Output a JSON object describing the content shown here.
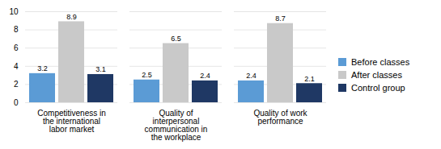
{
  "chart_data": {
    "type": "bar",
    "categories": [
      "Competitiveness in\nthe international\nlabor market",
      "Quality of\ninterpersonal\ncommunication in\nthe workplace",
      "Quality of work\nperformance"
    ],
    "series": [
      {
        "name": "Before classes",
        "color": "#5b9bd5",
        "values": [
          3.2,
          2.5,
          2.4
        ]
      },
      {
        "name": "After classes",
        "color": "#c9c9c9",
        "values": [
          8.9,
          6.5,
          8.7
        ]
      },
      {
        "name": "Control group",
        "color": "#1f3864",
        "values": [
          3.1,
          2.4,
          2.1
        ]
      }
    ],
    "ylim": [
      0,
      10
    ],
    "yticks": [
      0,
      2,
      4,
      6,
      8,
      10
    ],
    "grid": true,
    "legend": "right",
    "data_labels": true
  }
}
